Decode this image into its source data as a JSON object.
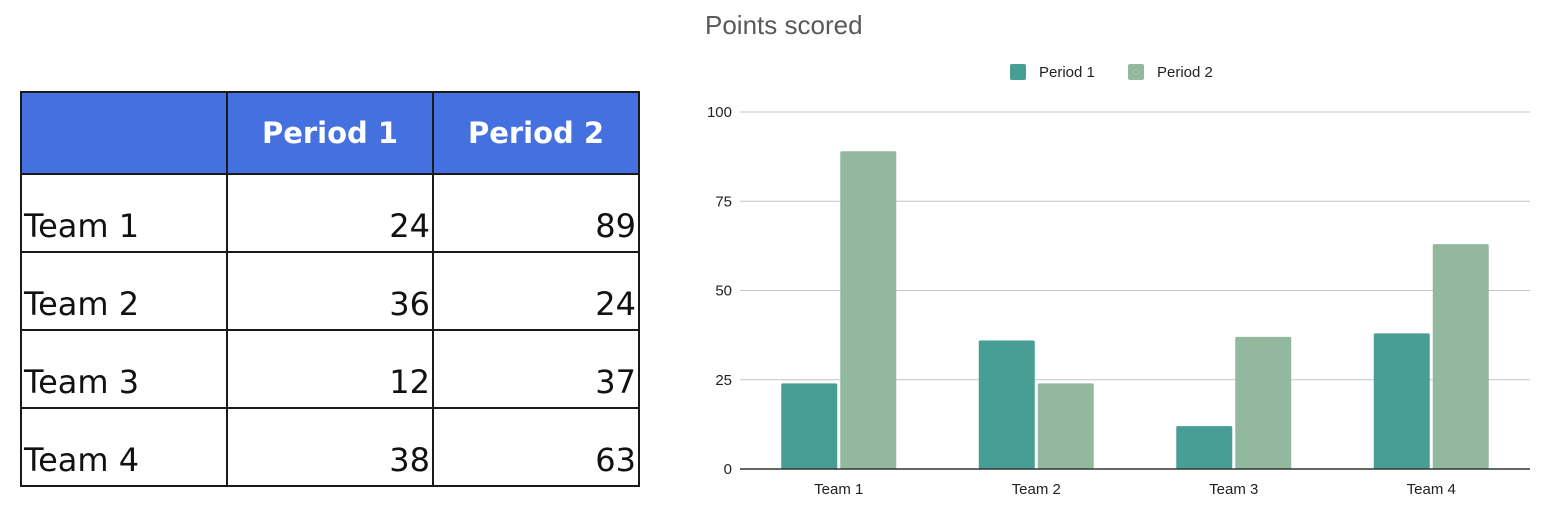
{
  "table": {
    "headers": [
      "",
      "Period 1",
      "Period 2"
    ],
    "rows": [
      {
        "label": "Team 1",
        "p1": "24",
        "p2": "89"
      },
      {
        "label": "Team 2",
        "p1": "36",
        "p2": "24"
      },
      {
        "label": "Team 3",
        "p1": "12",
        "p2": "37"
      },
      {
        "label": "Team 4",
        "p1": "38",
        "p2": "63"
      }
    ]
  },
  "chart_data": {
    "type": "bar",
    "title": "Points scored",
    "categories": [
      "Team 1",
      "Team 2",
      "Team 3",
      "Team 4"
    ],
    "series": [
      {
        "name": "Period 1",
        "values": [
          24,
          36,
          12,
          38
        ],
        "color": "#469e94"
      },
      {
        "name": "Period 2",
        "values": [
          89,
          24,
          37,
          63
        ],
        "color": "#92b99d"
      }
    ],
    "ylim": [
      0,
      100
    ],
    "yticks": [
      0,
      25,
      50,
      75,
      100
    ],
    "xlabel": "",
    "ylabel": "",
    "grid": true,
    "legend": "top-center"
  }
}
